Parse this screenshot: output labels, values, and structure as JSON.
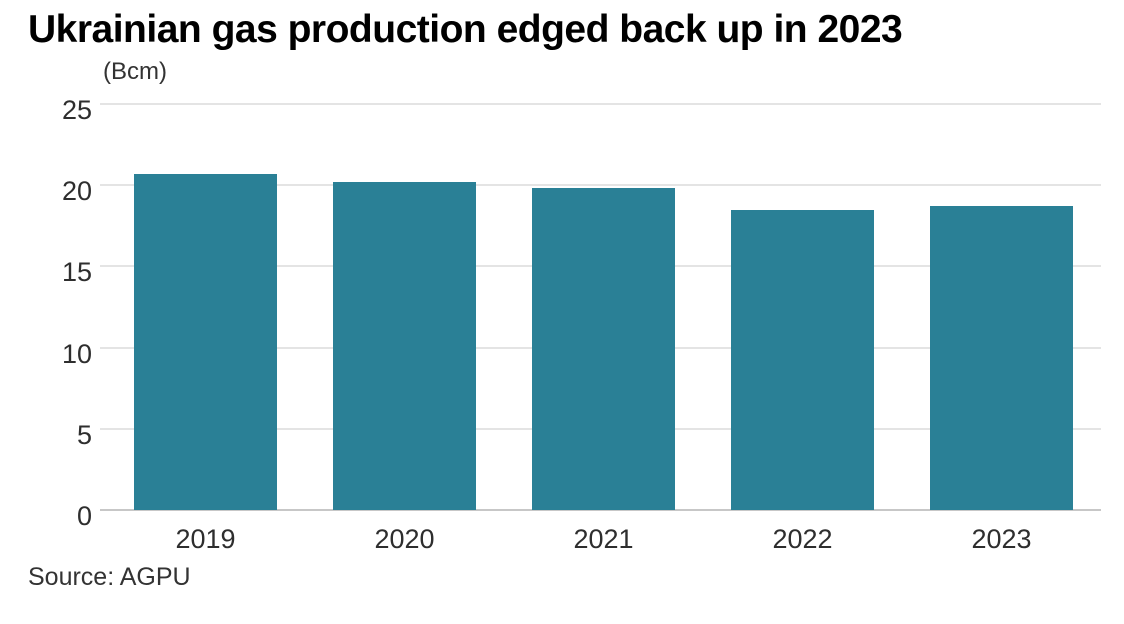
{
  "header": {
    "title": "Ukrainian gas production edged back up in 2023",
    "unit_label": "(Bcm)"
  },
  "footer": {
    "source": "Source: AGPU"
  },
  "colors": {
    "bar": "#2a8096",
    "gridline": "#e4e4e4",
    "baseline": "#c7c7c7",
    "title_text": "#000000",
    "label_text": "#2e2e2e"
  },
  "chart_data": {
    "type": "bar",
    "categories": [
      "2019",
      "2020",
      "2021",
      "2022",
      "2023"
    ],
    "values": [
      20.7,
      20.2,
      19.8,
      18.5,
      18.7
    ],
    "title": "Ukrainian gas production edged back up in 2023",
    "xlabel": "",
    "ylabel": "(Bcm)",
    "ylim": [
      0,
      25
    ],
    "yticks": [
      0,
      5,
      10,
      15,
      20,
      25
    ],
    "grid": true,
    "legend": false,
    "source": "Source: AGPU"
  }
}
